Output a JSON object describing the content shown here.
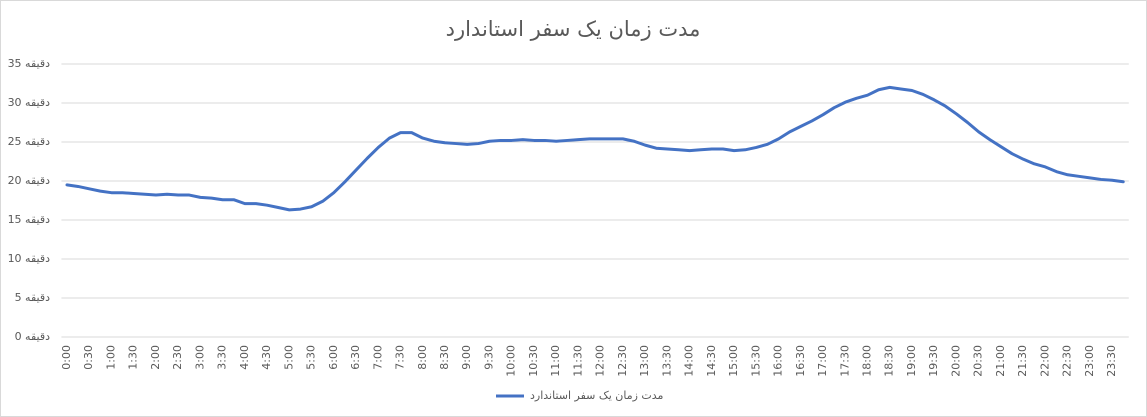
{
  "chart_data": {
    "type": "line",
    "title": "مدت زمان یک سفر استاندارد",
    "categories": [
      "0:00",
      null,
      "0:30",
      null,
      "1:00",
      null,
      "1:30",
      null,
      "2:00",
      null,
      "2:30",
      null,
      "3:00",
      null,
      "3:30",
      null,
      "4:00",
      null,
      "4:30",
      null,
      "5:00",
      null,
      "5:30",
      null,
      "6:00",
      null,
      "6:30",
      null,
      "7:00",
      null,
      "7:30",
      null,
      "8:00",
      null,
      "8:30",
      null,
      "9:00",
      null,
      "9:30",
      null,
      "10:00",
      null,
      "10:30",
      null,
      "11:00",
      null,
      "11:30",
      null,
      "12:00",
      null,
      "12:30",
      null,
      "13:00",
      null,
      "13:30",
      null,
      "14:00",
      null,
      "14:30",
      null,
      "15:00",
      null,
      "15:30",
      null,
      "16:00",
      null,
      "16:30",
      null,
      "17:00",
      null,
      "17:30",
      null,
      "18:00",
      null,
      "18:30",
      null,
      "19:00",
      null,
      "19:30",
      null,
      "20:00",
      null,
      "20:30",
      null,
      "21:00",
      null,
      "21:30",
      null,
      "22:00",
      null,
      "22:30",
      null,
      "23:00",
      null,
      "23:30",
      null
    ],
    "series": [
      {
        "name": "مدت زمان یک سفر استاندارد",
        "color": "#4472c4",
        "values": [
          19.5,
          19.3,
          19.0,
          18.7,
          18.5,
          18.5,
          18.4,
          18.3,
          18.2,
          18.3,
          18.2,
          18.2,
          17.9,
          17.8,
          17.6,
          17.6,
          17.1,
          17.1,
          16.9,
          16.6,
          16.3,
          16.4,
          16.7,
          17.4,
          18.5,
          19.9,
          21.4,
          22.9,
          24.3,
          25.5,
          26.2,
          26.2,
          25.5,
          25.1,
          24.9,
          24.8,
          24.7,
          24.8,
          25.1,
          25.2,
          25.2,
          25.3,
          25.2,
          25.2,
          25.1,
          25.2,
          25.3,
          25.4,
          25.4,
          25.4,
          25.4,
          25.1,
          24.6,
          24.2,
          24.1,
          24.0,
          23.9,
          24.0,
          24.1,
          24.1,
          23.9,
          24.0,
          24.3,
          24.7,
          25.4,
          26.3,
          27.0,
          27.7,
          28.5,
          29.4,
          30.1,
          30.6,
          31.0,
          31.7,
          32.0,
          31.8,
          31.6,
          31.1,
          30.4,
          29.6,
          28.6,
          27.5,
          26.3,
          25.3,
          24.4,
          23.5,
          22.8,
          22.2,
          21.8,
          21.2,
          20.8,
          20.6,
          20.4,
          20.2,
          20.1,
          19.9
        ]
      }
    ],
    "ylim": [
      0,
      35
    ],
    "yticks": [
      {
        "value": 0,
        "label": "دقیقه 0"
      },
      {
        "value": 5,
        "label": "دقیقه 5"
      },
      {
        "value": 10,
        "label": "دقیقه 10"
      },
      {
        "value": 15,
        "label": "دقیقه 15"
      },
      {
        "value": 20,
        "label": "دقیقه 20"
      },
      {
        "value": 25,
        "label": "دقیقه 25"
      },
      {
        "value": 30,
        "label": "دقیقه 30"
      },
      {
        "value": 35,
        "label": "دقیقه 35"
      }
    ],
    "grid": true,
    "legend": "bottom"
  }
}
